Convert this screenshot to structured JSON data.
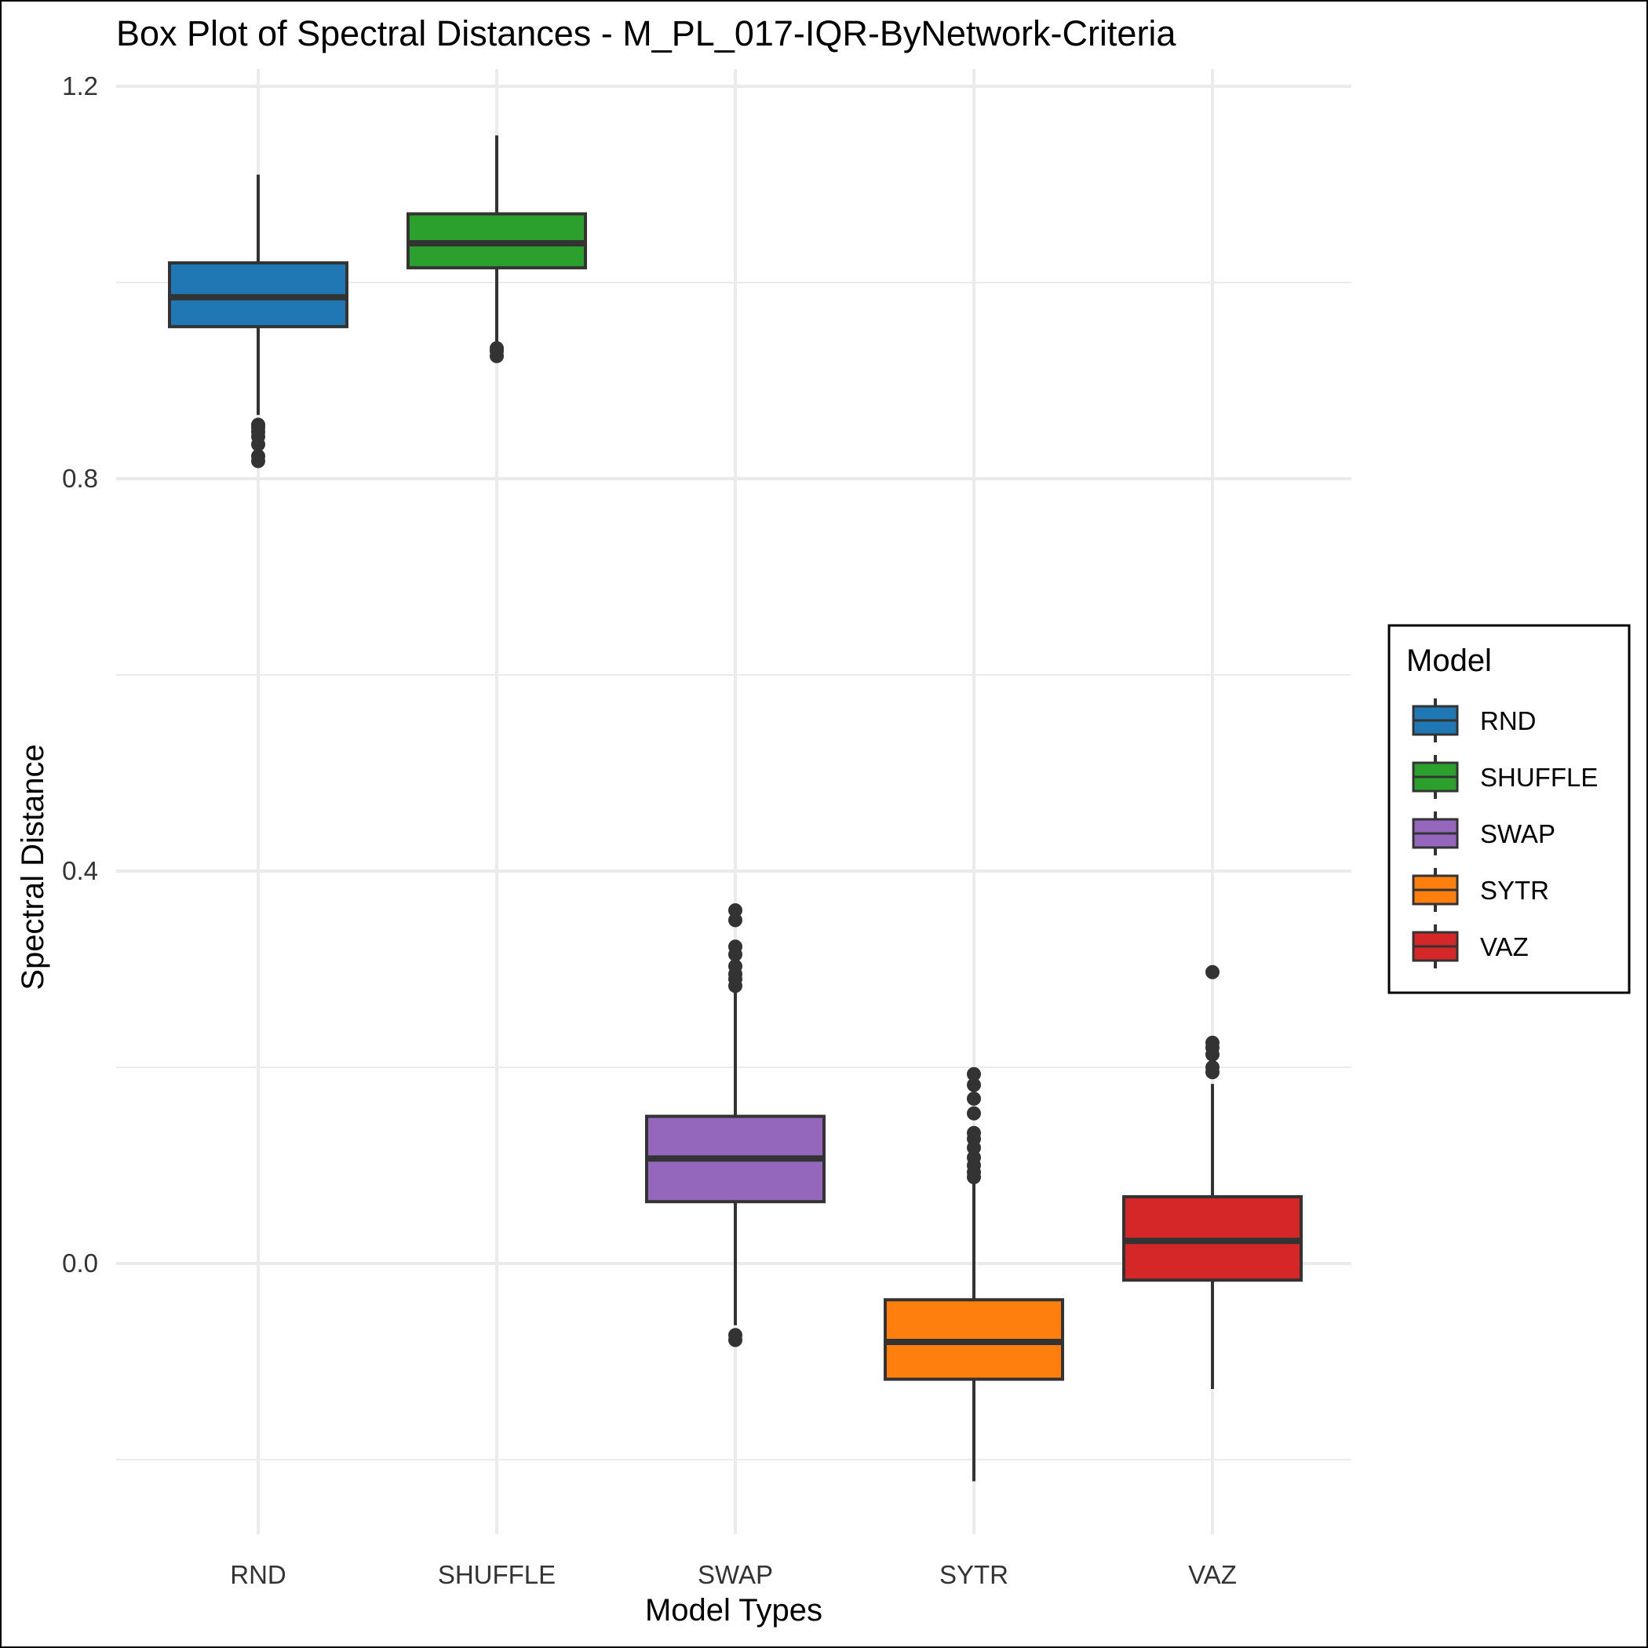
{
  "chart_data": {
    "type": "box",
    "title": "Box Plot of Spectral Distances -  M_PL_017-IQR-ByNetwork-Criteria",
    "xlabel": "Model Types",
    "ylabel": "Spectral Distance",
    "ylim": [
      -0.24,
      1.22
    ],
    "yticks": [
      0.0,
      0.4,
      0.8,
      1.2
    ],
    "ytick_labels": [
      "0.0",
      "0.4",
      "0.8",
      "1.2"
    ],
    "grid": true,
    "legend": {
      "title": "Model",
      "position": "right"
    },
    "categories": [
      "RND",
      "SHUFFLE",
      "SWAP",
      "SYTR",
      "VAZ"
    ],
    "series": [
      {
        "name": "RND",
        "color": "#1F77B4",
        "whisker_low": 0.865,
        "q1": 0.955,
        "median": 0.985,
        "q3": 1.02,
        "whisker_high": 1.11,
        "outliers": [
          0.818,
          0.823,
          0.835,
          0.843,
          0.848,
          0.852,
          0.855
        ]
      },
      {
        "name": "SHUFFLE",
        "color": "#2CA02C",
        "whisker_low": 0.94,
        "q1": 1.015,
        "median": 1.04,
        "q3": 1.07,
        "whisker_high": 1.15,
        "outliers": [
          0.925,
          0.93,
          0.933
        ]
      },
      {
        "name": "SWAP",
        "color": "#9467BD",
        "whisker_low": -0.063,
        "q1": 0.063,
        "median": 0.107,
        "q3": 0.15,
        "whisker_high": 0.28,
        "outliers": [
          -0.078,
          -0.073,
          0.283,
          0.29,
          0.295,
          0.303,
          0.315,
          0.323,
          0.35,
          0.36
        ]
      },
      {
        "name": "SYTR",
        "color": "#FF7F0E",
        "whisker_low": -0.222,
        "q1": -0.118,
        "median": -0.08,
        "q3": -0.037,
        "whisker_high": 0.085,
        "outliers": [
          0.088,
          0.093,
          0.1,
          0.108,
          0.118,
          0.127,
          0.133,
          0.153,
          0.168,
          0.182,
          0.193
        ]
      },
      {
        "name": "VAZ",
        "color": "#D62728",
        "whisker_low": -0.128,
        "q1": -0.017,
        "median": 0.023,
        "q3": 0.068,
        "whisker_high": 0.183,
        "outliers": [
          0.195,
          0.2,
          0.213,
          0.22,
          0.225,
          0.297
        ]
      }
    ]
  }
}
